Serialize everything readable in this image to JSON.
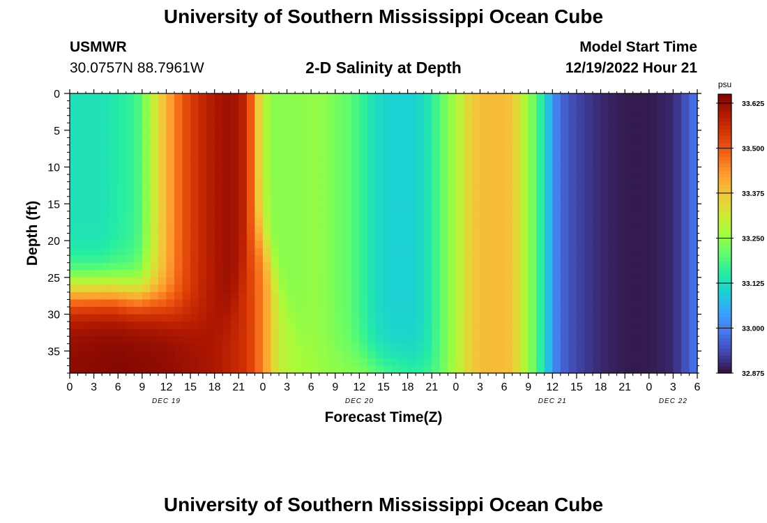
{
  "header": {
    "title": "University of Southern Mississippi Ocean Cube",
    "station": "USMWR",
    "coords": "30.0757N  88.7961W",
    "subtitle": "2-D Salinity at Depth",
    "start_label": "Model Start Time",
    "start_value": "12/19/2022 Hour 21"
  },
  "footer": {
    "title": "University of Southern Mississippi Ocean Cube"
  },
  "colors": {
    "frame": "#000000",
    "background": "#ffffff"
  },
  "chart_data": {
    "type": "heatmap",
    "ylabel": "Depth (ft)",
    "xlabel": "Forecast Time(Z)",
    "x_unit": "hours",
    "xlim": [
      0,
      78
    ],
    "ylim": [
      0,
      38
    ],
    "y_inverted": true,
    "x_ticks": [
      {
        "x": 0,
        "label": "0"
      },
      {
        "x": 3,
        "label": "3"
      },
      {
        "x": 6,
        "label": "6"
      },
      {
        "x": 9,
        "label": "9"
      },
      {
        "x": 12,
        "label": "12"
      },
      {
        "x": 15,
        "label": "15"
      },
      {
        "x": 18,
        "label": "18"
      },
      {
        "x": 21,
        "label": "21"
      },
      {
        "x": 24,
        "label": "0"
      },
      {
        "x": 27,
        "label": "3"
      },
      {
        "x": 30,
        "label": "6"
      },
      {
        "x": 33,
        "label": "9"
      },
      {
        "x": 36,
        "label": "12"
      },
      {
        "x": 39,
        "label": "15"
      },
      {
        "x": 42,
        "label": "18"
      },
      {
        "x": 45,
        "label": "21"
      },
      {
        "x": 48,
        "label": "0"
      },
      {
        "x": 51,
        "label": "3"
      },
      {
        "x": 54,
        "label": "6"
      },
      {
        "x": 57,
        "label": "9"
      },
      {
        "x": 60,
        "label": "12"
      },
      {
        "x": 63,
        "label": "15"
      },
      {
        "x": 66,
        "label": "18"
      },
      {
        "x": 69,
        "label": "21"
      },
      {
        "x": 72,
        "label": "0"
      },
      {
        "x": 75,
        "label": "3"
      },
      {
        "x": 78,
        "label": "6"
      }
    ],
    "date_labels": [
      {
        "x": 12,
        "label": "DEC 19"
      },
      {
        "x": 36,
        "label": "DEC 20"
      },
      {
        "x": 60,
        "label": "DEC 21"
      },
      {
        "x": 75,
        "label": "DEC 22"
      }
    ],
    "y_ticks": [
      {
        "y": 0,
        "label": "0"
      },
      {
        "y": 5,
        "label": "5"
      },
      {
        "y": 10,
        "label": "10"
      },
      {
        "y": 15,
        "label": "15"
      },
      {
        "y": 20,
        "label": "20"
      },
      {
        "y": 25,
        "label": "25"
      },
      {
        "y": 30,
        "label": "30"
      },
      {
        "y": 35,
        "label": "35"
      }
    ],
    "colorbar": {
      "unit": "psu",
      "min": 32.875,
      "max": 33.65,
      "ticks": [
        "33.625",
        "33.500",
        "33.375",
        "33.250",
        "33.125",
        "33.000",
        "32.875"
      ],
      "tick_values": [
        33.625,
        33.5,
        33.375,
        33.25,
        33.125,
        33.0,
        32.875
      ],
      "colormap": [
        "#30123b",
        "#4145ab",
        "#4675ed",
        "#39a2fc",
        "#1bcfd4",
        "#24eca6",
        "#61fc6c",
        "#a4fc3b",
        "#d1e834",
        "#f3c63a",
        "#fe9b2d",
        "#f36315",
        "#d93806",
        "#b11901",
        "#7a0403"
      ]
    },
    "surface_profile": {
      "description": "salinity (psu) at the surface (0-20 ft) by forecast hour",
      "x": [
        0,
        4,
        8,
        9,
        10,
        11,
        12,
        14,
        16,
        18,
        20,
        22,
        23,
        24,
        25,
        28,
        31,
        35,
        37,
        38,
        40,
        43,
        45,
        46,
        48,
        50,
        52,
        55,
        57,
        58,
        59,
        60,
        61,
        63,
        66,
        69,
        72,
        75,
        76,
        77,
        78
      ],
      "values": [
        33.13,
        33.13,
        33.17,
        33.2,
        33.28,
        33.34,
        33.4,
        33.5,
        33.56,
        33.6,
        33.62,
        33.57,
        33.42,
        33.3,
        33.24,
        33.24,
        33.25,
        33.2,
        33.15,
        33.12,
        33.1,
        33.1,
        33.15,
        33.2,
        33.27,
        33.37,
        33.39,
        33.38,
        33.25,
        33.2,
        33.12,
        33.03,
        32.97,
        32.93,
        32.9,
        32.885,
        32.885,
        32.9,
        32.93,
        32.96,
        32.99
      ]
    },
    "bottom_profile": {
      "description": "salinity (psu) near the bottom (38 ft) by forecast hour",
      "x": [
        0,
        6,
        12,
        18,
        22,
        24,
        26,
        28,
        32,
        36,
        40,
        43,
        46,
        48,
        50,
        52,
        55,
        57,
        58,
        60,
        61,
        63,
        66,
        69,
        72,
        75,
        76,
        77,
        78
      ],
      "values": [
        33.63,
        33.64,
        33.63,
        33.6,
        33.55,
        33.45,
        33.3,
        33.27,
        33.25,
        33.25,
        33.22,
        33.2,
        33.21,
        33.28,
        33.37,
        33.39,
        33.38,
        33.25,
        33.2,
        33.03,
        32.97,
        32.93,
        32.9,
        32.885,
        32.885,
        32.9,
        32.93,
        32.96,
        32.99
      ]
    },
    "transition": {
      "description": "depth (ft) where the surface profile gives way to the bottom profile",
      "x": [
        0,
        5,
        10,
        14,
        18,
        20,
        21,
        22,
        23,
        24,
        25,
        26,
        28,
        32,
        40,
        48,
        78
      ],
      "depth": [
        27,
        27,
        28,
        30,
        31,
        30,
        27,
        22,
        19,
        20,
        22,
        26,
        32,
        35,
        37,
        38,
        38
      ]
    }
  }
}
